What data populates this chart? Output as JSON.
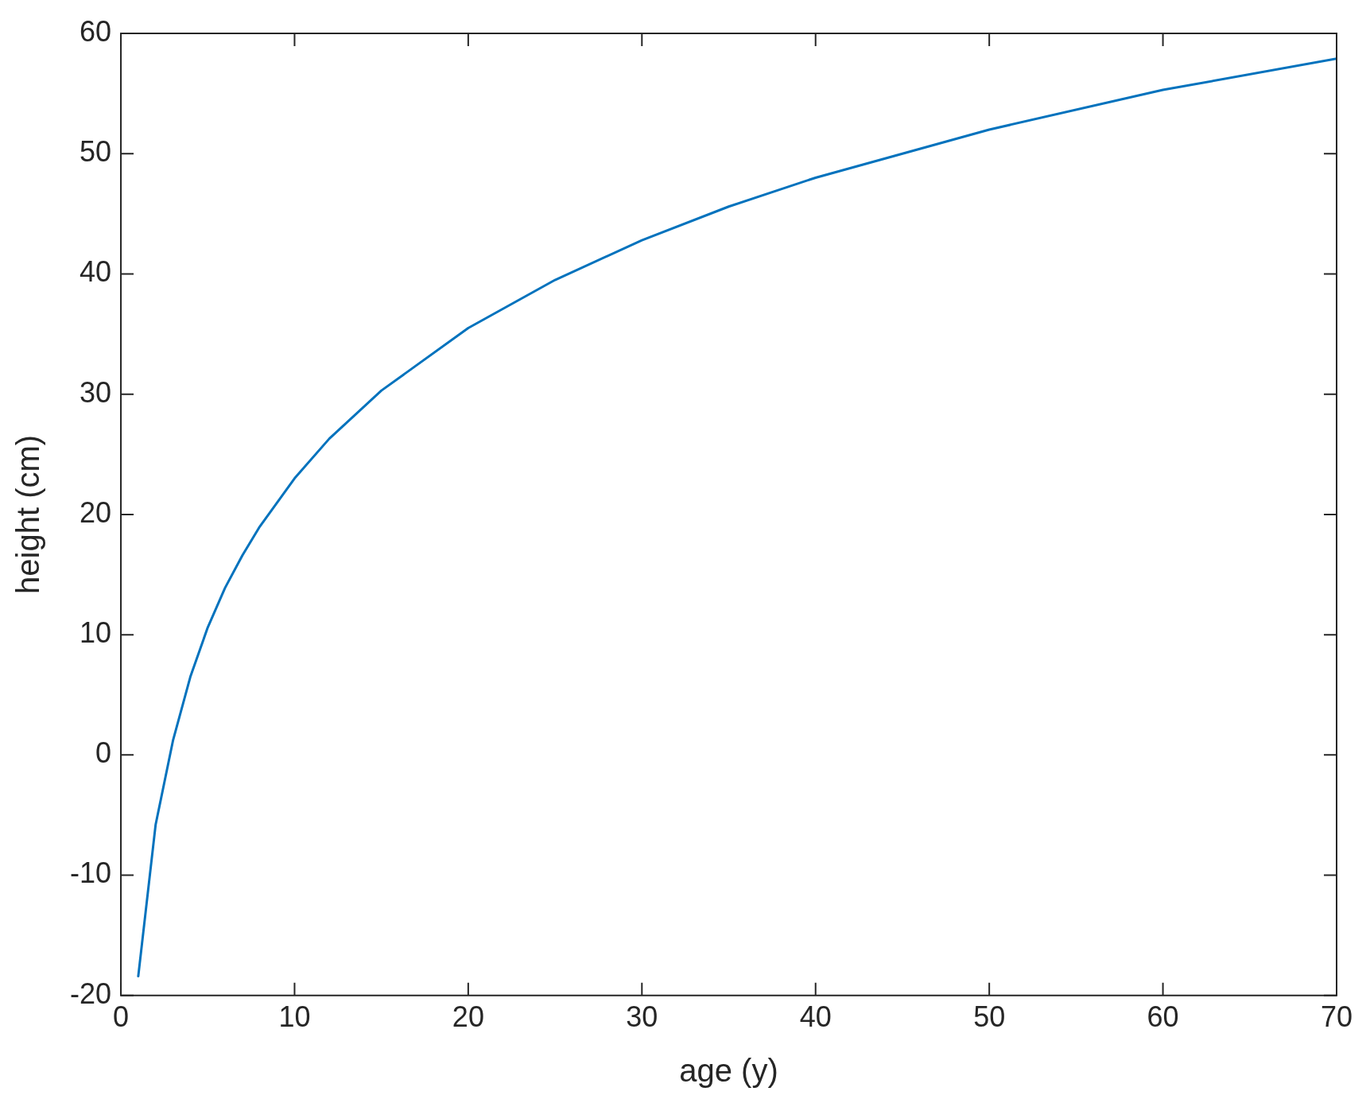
{
  "chart_data": {
    "type": "line",
    "xlabel": "age (y)",
    "ylabel": "height (cm)",
    "x": [
      1,
      2,
      3,
      4,
      5,
      6,
      7,
      8,
      10,
      12,
      15,
      20,
      25,
      30,
      35,
      40,
      50,
      60,
      70
    ],
    "series": [
      {
        "color": "#0072bd",
        "values": [
          -18.4,
          -5.8,
          1.2,
          6.5,
          10.6,
          13.9,
          16.6,
          19.0,
          23.0,
          26.3,
          30.3,
          35.5,
          39.5,
          42.8,
          45.6,
          48.0,
          52.0,
          55.3,
          57.9
        ]
      }
    ],
    "xlim": [
      0,
      70
    ],
    "xticks": [
      0,
      10,
      20,
      30,
      40,
      50,
      60,
      70
    ],
    "ylim": [
      -20,
      60
    ],
    "yticks": [
      -20,
      -10,
      0,
      10,
      20,
      30,
      40,
      50,
      60
    ],
    "grid": false,
    "legend": false,
    "marker": "none",
    "line_style": "solid"
  }
}
